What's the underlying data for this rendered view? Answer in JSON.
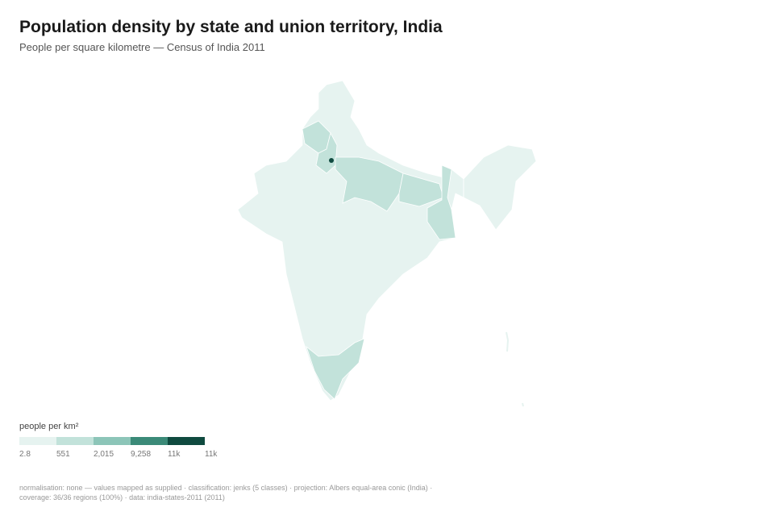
{
  "header": {
    "title": "Population density by state and union territory, India",
    "subtitle": "People per square kilometre — Census of India 2011"
  },
  "legend": {
    "title": "people per km²",
    "colors": [
      "#e6f3f0",
      "#c2e2da",
      "#8cc5b8",
      "#3b8a78",
      "#0f4a3f"
    ],
    "labels": [
      "2.8",
      "551",
      "2,015",
      "9,258",
      "11k",
      "11k"
    ]
  },
  "footer": {
    "lines": [
      "normalisation: none — values mapped as supplied · classification: jenks (5 classes) · projection: Albers equal-area conic (India) ·",
      "coverage: 36/36 regions (100%) · data: india-states-2011 (2011)"
    ]
  }
}
